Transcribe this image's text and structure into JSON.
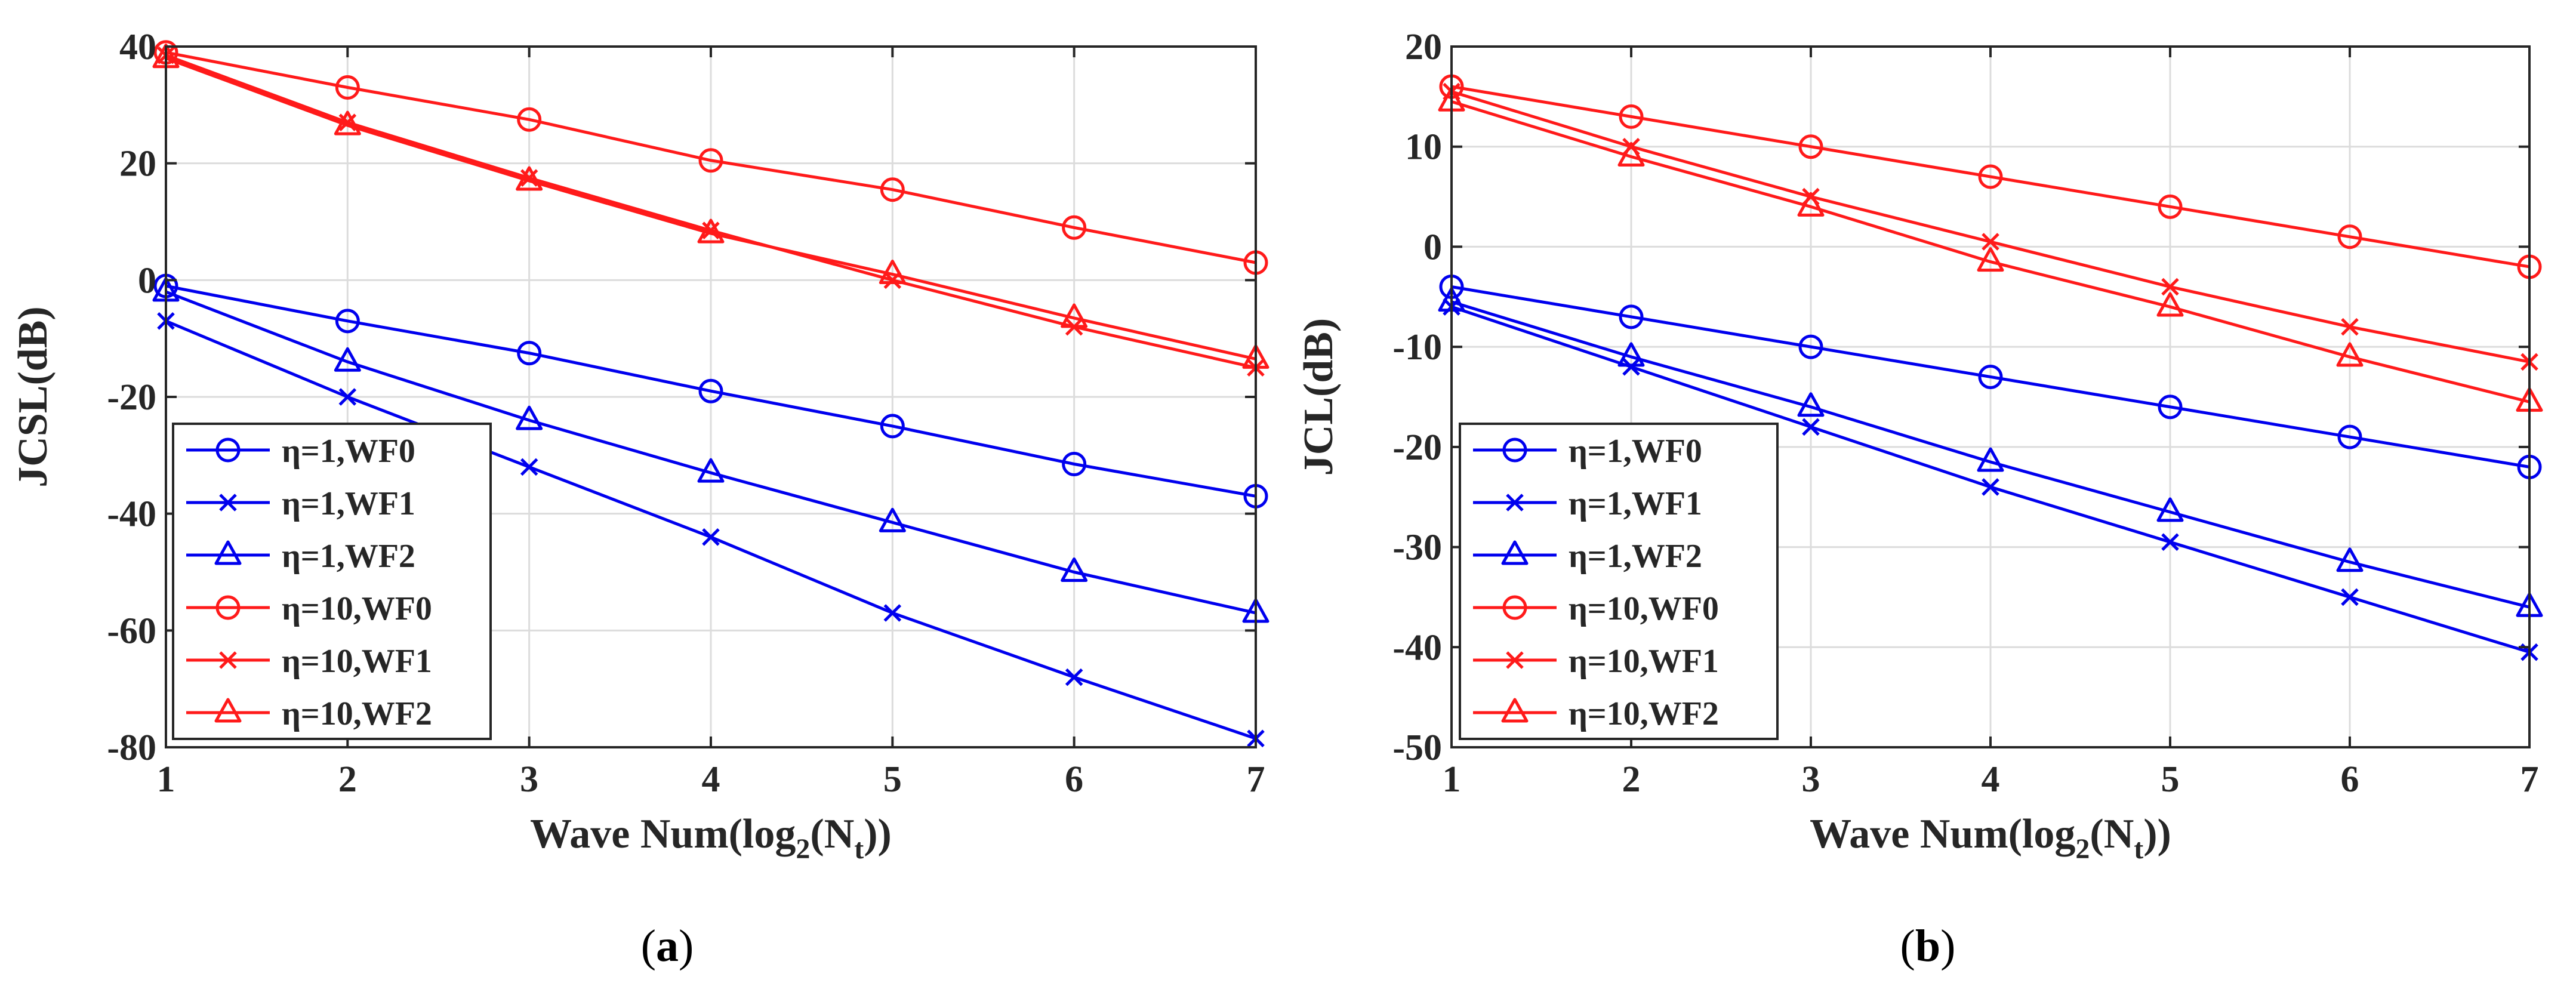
{
  "colors": {
    "eta1": "#0000ee",
    "eta10": "#ff1a1a",
    "grid": "#dcdcdc",
    "axis": "#262626"
  },
  "chart_data": [
    {
      "type": "line",
      "panel_label": "a",
      "xlabel": "Wave Num(log2(Nt))",
      "xlabel_parts": {
        "pre": "Wave Num(log",
        "sub1": "2",
        "mid": "(N",
        "sub2": "t",
        "post": "))"
      },
      "ylabel": "JCSL(dB)",
      "xlim": [
        1,
        7
      ],
      "ylim": [
        -80,
        40
      ],
      "xticks": [
        1,
        2,
        3,
        4,
        5,
        6,
        7
      ],
      "yticks": [
        -80,
        -60,
        -40,
        -20,
        0,
        20,
        40
      ],
      "grid": true,
      "legend_position": "bottom-left",
      "x": [
        1,
        2,
        3,
        4,
        5,
        6,
        7
      ],
      "series": [
        {
          "name": "η=1,WF0",
          "color_key": "eta1",
          "marker": "circle",
          "values": [
            -1,
            -7,
            -12.5,
            -19,
            -25,
            -31.5,
            -37
          ]
        },
        {
          "name": "η=1,WF1",
          "color_key": "eta1",
          "marker": "x",
          "values": [
            -7,
            -20,
            -32,
            -44,
            -57,
            -68,
            -78.5
          ]
        },
        {
          "name": "η=1,WF2",
          "color_key": "eta1",
          "marker": "triangle",
          "values": [
            -2,
            -14,
            -24,
            -33,
            -41.5,
            -50,
            -57
          ]
        },
        {
          "name": "η=10,WF0",
          "color_key": "eta10",
          "marker": "circle",
          "values": [
            39,
            33,
            27.5,
            20.5,
            15.5,
            9,
            3
          ]
        },
        {
          "name": "η=10,WF1",
          "color_key": "eta10",
          "marker": "x",
          "values": [
            38.5,
            27,
            17.5,
            8.5,
            0,
            -8,
            -15
          ]
        },
        {
          "name": "η=10,WF2",
          "color_key": "eta10",
          "marker": "triangle",
          "values": [
            38,
            26.5,
            17,
            8,
            1,
            -6.5,
            -13.5
          ]
        }
      ]
    },
    {
      "type": "line",
      "panel_label": "b",
      "xlabel": "Wave Num(log2(Nt))",
      "xlabel_parts": {
        "pre": "Wave Num(log",
        "sub1": "2",
        "mid": "(N",
        "sub2": "t",
        "post": "))"
      },
      "ylabel": "JCL(dB)",
      "xlim": [
        1,
        7
      ],
      "ylim": [
        -50,
        20
      ],
      "xticks": [
        1,
        2,
        3,
        4,
        5,
        6,
        7
      ],
      "yticks": [
        -50,
        -40,
        -30,
        -20,
        -10,
        0,
        10,
        20
      ],
      "grid": true,
      "legend_position": "bottom-left",
      "x": [
        1,
        2,
        3,
        4,
        5,
        6,
        7
      ],
      "series": [
        {
          "name": "η=1,WF0",
          "color_key": "eta1",
          "marker": "circle",
          "values": [
            -4,
            -7,
            -10,
            -13,
            -16,
            -19,
            -22
          ]
        },
        {
          "name": "η=1,WF1",
          "color_key": "eta1",
          "marker": "x",
          "values": [
            -6,
            -12,
            -18,
            -24,
            -29.5,
            -35,
            -40.5
          ]
        },
        {
          "name": "η=1,WF2",
          "color_key": "eta1",
          "marker": "triangle",
          "values": [
            -5.5,
            -11,
            -16,
            -21.5,
            -26.5,
            -31.5,
            -36
          ]
        },
        {
          "name": "η=10,WF0",
          "color_key": "eta10",
          "marker": "circle",
          "values": [
            16,
            13,
            10,
            7,
            4,
            1,
            -2
          ]
        },
        {
          "name": "η=10,WF1",
          "color_key": "eta10",
          "marker": "x",
          "values": [
            15.5,
            10,
            5,
            0.5,
            -4,
            -8,
            -11.5
          ]
        },
        {
          "name": "η=10,WF2",
          "color_key": "eta10",
          "marker": "triangle",
          "values": [
            14.5,
            9,
            4,
            -1.5,
            -6,
            -11,
            -15.5
          ]
        }
      ]
    }
  ]
}
